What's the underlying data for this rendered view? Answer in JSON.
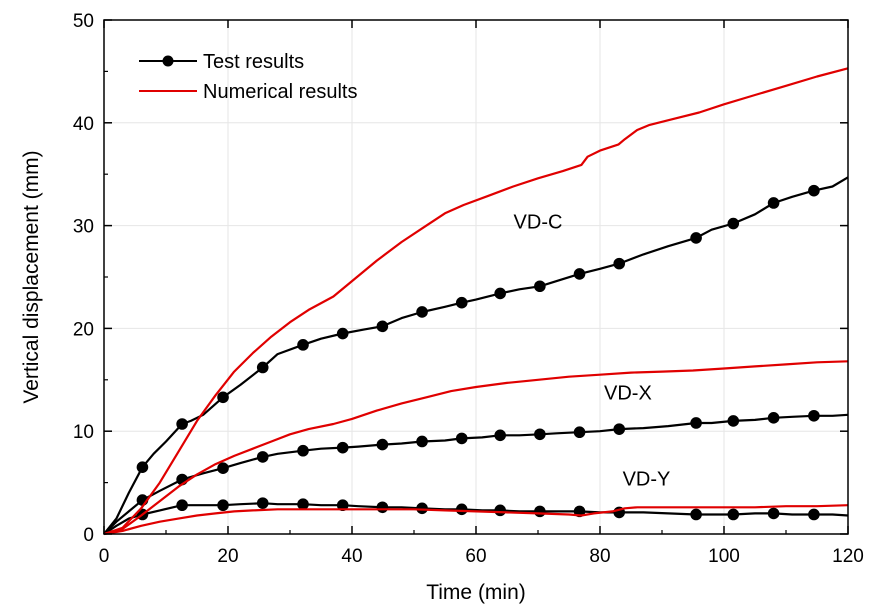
{
  "chart_data": {
    "type": "line",
    "xlabel": "Time (min)",
    "ylabel": "Vertical displacement (mm)",
    "xlim": [
      0,
      120
    ],
    "ylim": [
      0,
      50
    ],
    "xticks": [
      0,
      20,
      40,
      60,
      80,
      100,
      120
    ],
    "yticks": [
      0,
      10,
      20,
      30,
      40,
      50
    ],
    "grid": true,
    "legend": {
      "placement": "top-left",
      "entries": [
        {
          "label": "Test results",
          "color": "#000000",
          "marker": "circle"
        },
        {
          "label": "Numerical results",
          "color": "#e00000",
          "marker": "none"
        }
      ]
    },
    "annotations": [
      {
        "text": "VD-C",
        "x": 70,
        "y": 29.7
      },
      {
        "text": "VD-X",
        "x": 84.5,
        "y": 13.1
      },
      {
        "text": "VD-Y",
        "x": 87.5,
        "y": 4.7
      }
    ],
    "series": [
      {
        "group": "Test results",
        "color": "#000000",
        "marker": "circle",
        "points": [
          [
            0,
            0
          ],
          [
            2,
            1.5
          ],
          [
            4,
            4
          ],
          [
            6.2,
            6.5
          ],
          [
            8,
            7.8
          ],
          [
            10,
            9
          ],
          [
            12.6,
            10.7
          ],
          [
            14,
            11
          ],
          [
            16,
            11.6
          ],
          [
            19.2,
            13.3
          ],
          [
            22,
            14.5
          ],
          [
            25.6,
            16.2
          ],
          [
            28,
            17.5
          ],
          [
            32.1,
            18.4
          ],
          [
            35,
            19.0
          ],
          [
            38.5,
            19.5
          ],
          [
            42,
            19.9
          ],
          [
            44.9,
            20.2
          ],
          [
            48,
            21
          ],
          [
            51.3,
            21.6
          ],
          [
            55,
            22.1
          ],
          [
            57.7,
            22.5
          ],
          [
            60,
            22.8
          ],
          [
            63.9,
            23.4
          ],
          [
            67,
            23.8
          ],
          [
            70.3,
            24.1
          ],
          [
            73,
            24.6
          ],
          [
            76.7,
            25.3
          ],
          [
            80,
            25.8
          ],
          [
            83.1,
            26.3
          ],
          [
            87,
            27.2
          ],
          [
            91,
            28
          ],
          [
            95.5,
            28.8
          ],
          [
            98,
            29.6
          ],
          [
            101.5,
            30.2
          ],
          [
            105,
            31.1
          ],
          [
            108,
            32.2
          ],
          [
            111,
            32.8
          ],
          [
            114.5,
            33.4
          ],
          [
            117.5,
            33.8
          ],
          [
            120,
            34.7
          ]
        ],
        "marker_x": [
          6.2,
          12.6,
          19.2,
          25.6,
          32.1,
          38.5,
          44.9,
          51.3,
          57.7,
          63.9,
          70.3,
          76.7,
          83.1,
          95.5,
          101.5,
          108,
          114.5
        ]
      },
      {
        "group": "Numerical results",
        "color": "#e00000",
        "marker": "none",
        "points": [
          [
            0,
            0
          ],
          [
            3,
            0.6
          ],
          [
            6,
            2.5
          ],
          [
            9,
            5
          ],
          [
            12,
            8
          ],
          [
            15,
            11
          ],
          [
            18,
            13.5
          ],
          [
            21,
            15.8
          ],
          [
            24,
            17.6
          ],
          [
            27,
            19.2
          ],
          [
            30,
            20.6
          ],
          [
            33,
            21.8
          ],
          [
            37,
            23.1
          ],
          [
            40,
            24.6
          ],
          [
            44,
            26.6
          ],
          [
            48,
            28.4
          ],
          [
            52,
            30
          ],
          [
            55,
            31.2
          ],
          [
            58,
            32
          ],
          [
            62,
            32.9
          ],
          [
            66,
            33.8
          ],
          [
            70,
            34.6
          ],
          [
            74,
            35.3
          ],
          [
            77,
            35.9
          ],
          [
            78,
            36.7
          ],
          [
            80,
            37.3
          ],
          [
            83,
            37.9
          ],
          [
            84,
            38.4
          ],
          [
            86,
            39.3
          ],
          [
            88,
            39.8
          ],
          [
            92,
            40.4
          ],
          [
            96,
            41
          ],
          [
            100,
            41.8
          ],
          [
            105,
            42.7
          ],
          [
            110,
            43.6
          ],
          [
            115,
            44.5
          ],
          [
            120,
            45.3
          ]
        ]
      },
      {
        "group": "Test results",
        "color": "#000000",
        "marker": "circle",
        "points": [
          [
            0,
            0
          ],
          [
            2,
            1.2
          ],
          [
            4,
            2.2
          ],
          [
            6.2,
            3.3
          ],
          [
            9,
            4.2
          ],
          [
            12.6,
            5.3
          ],
          [
            16,
            5.9
          ],
          [
            19.2,
            6.4
          ],
          [
            22,
            6.9
          ],
          [
            25.6,
            7.5
          ],
          [
            28,
            7.8
          ],
          [
            32.1,
            8.1
          ],
          [
            35,
            8.3
          ],
          [
            38.5,
            8.4
          ],
          [
            41,
            8.5
          ],
          [
            44.9,
            8.7
          ],
          [
            48,
            8.8
          ],
          [
            51.3,
            9.0
          ],
          [
            55,
            9.1
          ],
          [
            57.7,
            9.3
          ],
          [
            61,
            9.4
          ],
          [
            63.9,
            9.6
          ],
          [
            67,
            9.6
          ],
          [
            70.3,
            9.7
          ],
          [
            73,
            9.8
          ],
          [
            76.7,
            9.9
          ],
          [
            80,
            10.0
          ],
          [
            83.1,
            10.2
          ],
          [
            87,
            10.3
          ],
          [
            91,
            10.5
          ],
          [
            95.5,
            10.8
          ],
          [
            98,
            10.8
          ],
          [
            101.5,
            11.0
          ],
          [
            105,
            11.1
          ],
          [
            108,
            11.3
          ],
          [
            111,
            11.4
          ],
          [
            114.5,
            11.5
          ],
          [
            117.5,
            11.5
          ],
          [
            120,
            11.6
          ]
        ],
        "marker_x": [
          6.2,
          12.6,
          19.2,
          25.6,
          32.1,
          38.5,
          44.9,
          51.3,
          57.7,
          63.9,
          70.3,
          76.7,
          83.1,
          95.5,
          101.5,
          108,
          114.5
        ]
      },
      {
        "group": "Numerical results",
        "color": "#e00000",
        "marker": "none",
        "points": [
          [
            0,
            0
          ],
          [
            3,
            0.5
          ],
          [
            6,
            1.8
          ],
          [
            9,
            3.2
          ],
          [
            12,
            4.6
          ],
          [
            15,
            5.8
          ],
          [
            18,
            6.8
          ],
          [
            21,
            7.6
          ],
          [
            24,
            8.3
          ],
          [
            27,
            9
          ],
          [
            30,
            9.7
          ],
          [
            33,
            10.2
          ],
          [
            37,
            10.7
          ],
          [
            40,
            11.2
          ],
          [
            44,
            12
          ],
          [
            48,
            12.7
          ],
          [
            52,
            13.3
          ],
          [
            56,
            13.9
          ],
          [
            60,
            14.3
          ],
          [
            65,
            14.7
          ],
          [
            70,
            15
          ],
          [
            75,
            15.3
          ],
          [
            80,
            15.5
          ],
          [
            85,
            15.7
          ],
          [
            90,
            15.8
          ],
          [
            95,
            15.9
          ],
          [
            100,
            16.1
          ],
          [
            105,
            16.3
          ],
          [
            110,
            16.5
          ],
          [
            115,
            16.7
          ],
          [
            120,
            16.8
          ]
        ]
      },
      {
        "group": "Test results",
        "color": "#000000",
        "marker": "circle",
        "points": [
          [
            0,
            0
          ],
          [
            2,
            0.8
          ],
          [
            4,
            1.5
          ],
          [
            6.2,
            1.9
          ],
          [
            9,
            2.3
          ],
          [
            12.6,
            2.8
          ],
          [
            16,
            2.8
          ],
          [
            19.2,
            2.8
          ],
          [
            22,
            2.9
          ],
          [
            25.6,
            3.0
          ],
          [
            28,
            2.9
          ],
          [
            32.1,
            2.9
          ],
          [
            35,
            2.8
          ],
          [
            38.5,
            2.8
          ],
          [
            41,
            2.7
          ],
          [
            44.9,
            2.6
          ],
          [
            48,
            2.6
          ],
          [
            51.3,
            2.5
          ],
          [
            55,
            2.4
          ],
          [
            57.7,
            2.4
          ],
          [
            61,
            2.3
          ],
          [
            63.9,
            2.3
          ],
          [
            67,
            2.2
          ],
          [
            70.3,
            2.2
          ],
          [
            73,
            2.2
          ],
          [
            76.7,
            2.2
          ],
          [
            80,
            2.1
          ],
          [
            83.1,
            2.1
          ],
          [
            87,
            2.1
          ],
          [
            91,
            2.0
          ],
          [
            95.5,
            1.9
          ],
          [
            98,
            1.9
          ],
          [
            101.5,
            1.9
          ],
          [
            105,
            2.0
          ],
          [
            108,
            2.0
          ],
          [
            111,
            1.9
          ],
          [
            114.5,
            1.9
          ],
          [
            117.5,
            1.9
          ],
          [
            120,
            1.8
          ]
        ],
        "marker_x": [
          6.2,
          12.6,
          19.2,
          25.6,
          32.1,
          38.5,
          44.9,
          51.3,
          57.7,
          63.9,
          70.3,
          76.7,
          83.1,
          95.5,
          101.5,
          108,
          114.5
        ]
      },
      {
        "group": "Numerical results",
        "color": "#e00000",
        "marker": "none",
        "points": [
          [
            0,
            0
          ],
          [
            3,
            0.3
          ],
          [
            6,
            0.8
          ],
          [
            9,
            1.2
          ],
          [
            12,
            1.5
          ],
          [
            15,
            1.8
          ],
          [
            18,
            2.0
          ],
          [
            21,
            2.2
          ],
          [
            24,
            2.3
          ],
          [
            28,
            2.4
          ],
          [
            35,
            2.4
          ],
          [
            40,
            2.4
          ],
          [
            45,
            2.4
          ],
          [
            50,
            2.4
          ],
          [
            55,
            2.3
          ],
          [
            60,
            2.2
          ],
          [
            65,
            2.1
          ],
          [
            70,
            2.0
          ],
          [
            75,
            1.9
          ],
          [
            77,
            1.8
          ],
          [
            79,
            2.0
          ],
          [
            82,
            2.2
          ],
          [
            84,
            2.5
          ],
          [
            86,
            2.6
          ],
          [
            90,
            2.6
          ],
          [
            95,
            2.6
          ],
          [
            100,
            2.6
          ],
          [
            105,
            2.6
          ],
          [
            110,
            2.7
          ],
          [
            115,
            2.7
          ],
          [
            120,
            2.8
          ]
        ]
      }
    ]
  }
}
